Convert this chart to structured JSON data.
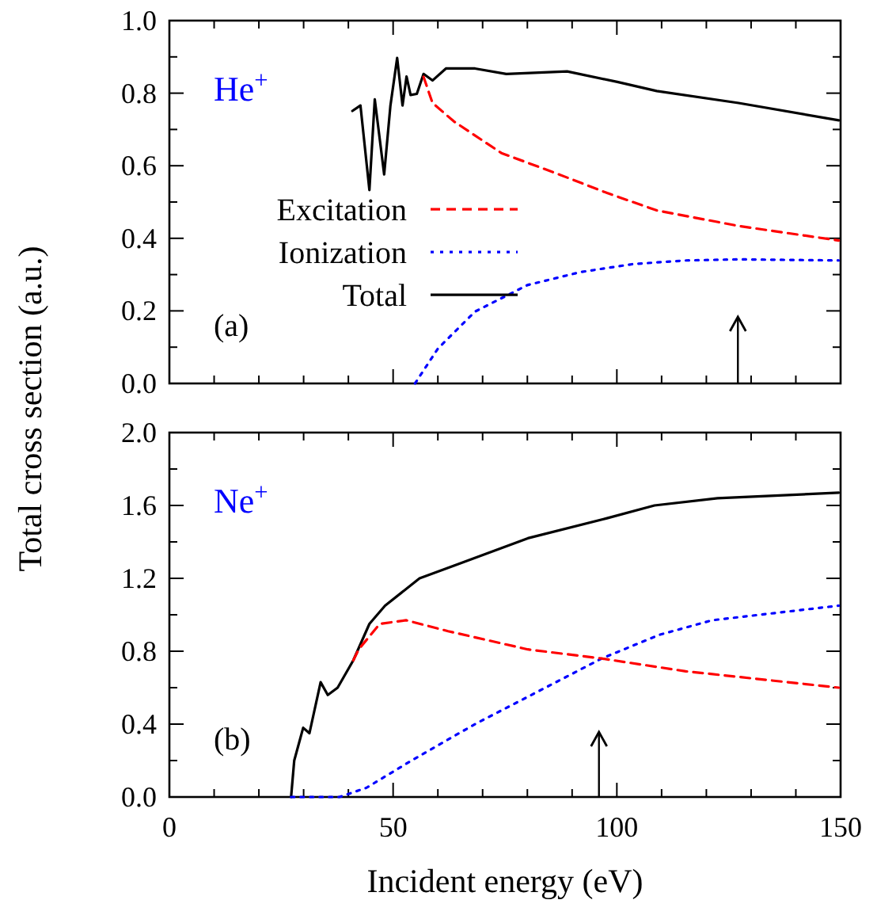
{
  "chart_data": [
    {
      "type": "line",
      "ylabel": "Total cross section (a.u.)",
      "annotations": [
        "He$^{+}$",
        "(a)"
      ],
      "legend": "left",
      "tick_labels": "y",
      "xlim": [
        0,
        150
      ],
      "xticks": [
        0,
        {
          "value": 10,
          "label": null
        },
        {
          "value": 20,
          "label": null
        },
        {
          "value": 30,
          "label": null
        },
        {
          "value": 40,
          "label": null
        },
        50,
        {
          "value": 60,
          "label": null
        },
        {
          "value": 70,
          "label": null
        },
        {
          "value": 80,
          "label": null
        },
        {
          "value": 90,
          "label": null
        },
        100,
        {
          "value": 110,
          "label": null
        },
        {
          "value": 120,
          "label": null
        },
        {
          "value": 130,
          "label": null
        },
        {
          "value": 140,
          "label": null
        },
        150
      ],
      "ylim": [
        0,
        1.0
      ],
      "yticks": [
        {
          "value": 0,
          "label": "0.0"
        },
        {
          "value": 0.1,
          "label": null
        },
        0.2,
        {
          "value": 0.3,
          "label": null
        },
        0.4,
        {
          "value": 0.5,
          "label": null
        },
        0.6,
        {
          "value": 0.7,
          "label": null
        },
        0.8,
        {
          "value": 0.9,
          "label": null
        },
        {
          "value": 1,
          "label": "1.0"
        }
      ],
      "series": [
        {
          "name": "Excitation",
          "color": "#ff0000",
          "line_style": "dashed",
          "x": [
            56.8,
            58.8,
            63.6,
            74.2,
            87.1,
            97.8,
            108.9,
            127.2,
            149.6
          ],
          "values": [
            0.845,
            0.773,
            0.722,
            0.635,
            0.576,
            0.525,
            0.477,
            0.434,
            0.394
          ]
        },
        {
          "name": "Ionization",
          "color": "#0000ff",
          "line_style": "dotted",
          "x": [
            54.9,
            60,
            68.3,
            80,
            91.9,
            103.6,
            115.4,
            127.2,
            149.6
          ],
          "values": [
            0,
            0.096,
            0.198,
            0.271,
            0.307,
            0.329,
            0.339,
            0.342,
            0.339
          ]
        },
        {
          "name": "Total",
          "color": "#000000",
          "line_style": "solid",
          "x": [
            40.9,
            42.7,
            44.7,
            45.9,
            48.0,
            49.4,
            50.9,
            52.1,
            53.0,
            53.9,
            55.3,
            56.8,
            58.8,
            61.8,
            68.3,
            75.3,
            88.9,
            100.1,
            108.9,
            127.2,
            149.6
          ],
          "values": [
            0.751,
            0.766,
            0.533,
            0.783,
            0.576,
            0.766,
            0.897,
            0.766,
            0.846,
            0.795,
            0.798,
            0.853,
            0.835,
            0.868,
            0.868,
            0.853,
            0.86,
            0.831,
            0.806,
            0.773,
            0.725
          ]
        }
      ]
    },
    {
      "type": "line",
      "xlabel": "Incident energy (eV)",
      "annotations": [
        "Ne$^{+}$",
        "(b)"
      ],
      "xlim": [
        0,
        150
      ],
      "xticks": [
        0,
        {
          "value": 10,
          "label": null
        },
        {
          "value": 20,
          "label": null
        },
        {
          "value": 30,
          "label": null
        },
        {
          "value": 40,
          "label": null
        },
        50,
        {
          "value": 60,
          "label": null
        },
        {
          "value": 70,
          "label": null
        },
        {
          "value": 80,
          "label": null
        },
        {
          "value": 90,
          "label": null
        },
        100,
        {
          "value": 110,
          "label": null
        },
        {
          "value": 120,
          "label": null
        },
        {
          "value": 130,
          "label": null
        },
        {
          "value": 140,
          "label": null
        },
        150
      ],
      "ylim": [
        0,
        2.0
      ],
      "yticks": [
        {
          "value": 0,
          "label": "0.0"
        },
        {
          "value": 0.2,
          "label": null
        },
        0.4,
        {
          "value": 0.6,
          "label": null
        },
        0.8,
        {
          "value": 1,
          "label": null
        },
        1.2,
        {
          "value": 1.4,
          "label": null
        },
        1.6,
        {
          "value": 1.8,
          "label": null
        },
        {
          "value": 2,
          "label": "2.0"
        }
      ],
      "series": [
        {
          "color": "#ff0000",
          "line_style": "dashed",
          "x": [
            41.1,
            42.3,
            47,
            52.9,
            62.3,
            80.1,
            96.6,
            115.4,
            149.6
          ],
          "values": [
            0.75,
            0.81,
            0.95,
            0.97,
            0.91,
            0.81,
            0.76,
            0.69,
            0.6
          ]
        },
        {
          "color": "#0000ff",
          "line_style": "dotted",
          "x": [
            27.2,
            38,
            44,
            54.1,
            68.3,
            80.1,
            96.6,
            109.5,
            121.3,
            149.6
          ],
          "values": [
            0,
            0,
            0.05,
            0.2,
            0.4,
            0.55,
            0.76,
            0.89,
            0.97,
            1.05
          ]
        },
        {
          "color": "#000000",
          "line_style": "solid",
          "x": [
            27.2,
            27.9,
            29.9,
            31.3,
            33.8,
            35.4,
            37.6,
            41.1,
            44.7,
            48.2,
            55.9,
            63.6,
            80.1,
            97.8,
            108.4,
            122.5,
            149.6
          ],
          "values": [
            0,
            0.2,
            0.38,
            0.35,
            0.63,
            0.56,
            0.6,
            0.75,
            0.95,
            1.05,
            1.2,
            1.27,
            1.42,
            1.53,
            1.6,
            1.64,
            1.67
          ]
        }
      ]
    }
  ]
}
